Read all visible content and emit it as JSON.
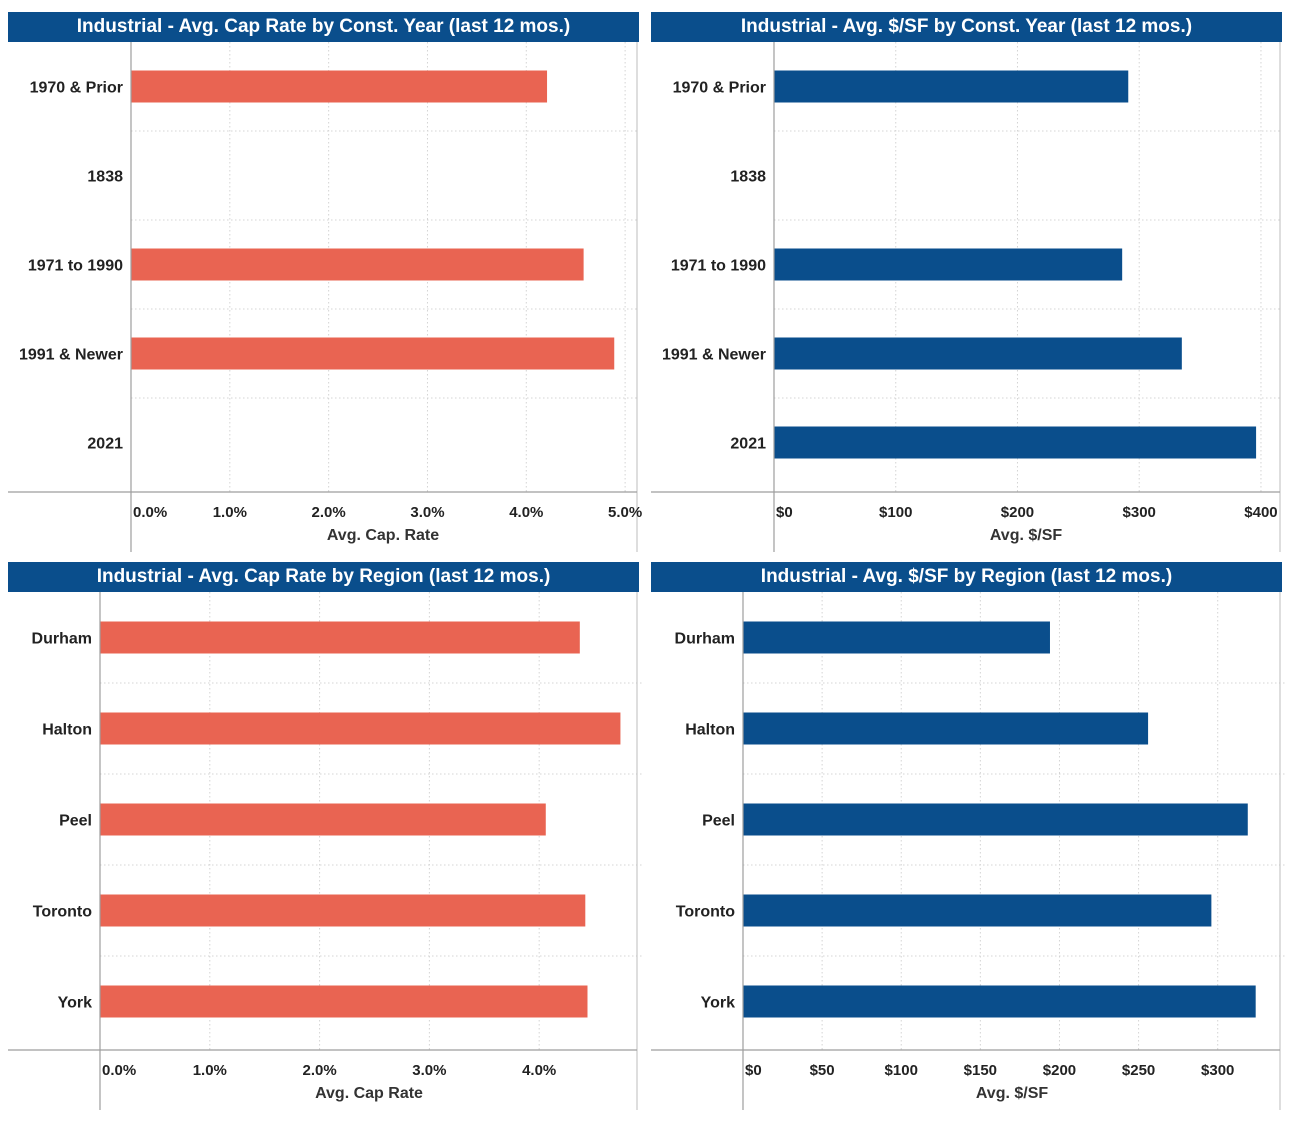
{
  "chart_data": [
    {
      "type": "bar",
      "orientation": "horizontal",
      "title": "Industrial - Avg. Cap Rate by Const. Year (last 12 mos.)",
      "xlabel": "Avg. Cap. Rate",
      "categories": [
        "1970 & Prior",
        "1838",
        "1971 to 1990",
        "1991 & Newer",
        "2021"
      ],
      "values": [
        4.21,
        null,
        4.58,
        4.89,
        null
      ],
      "value_unit": "%",
      "xlim": [
        0,
        5.1
      ],
      "ticks": [
        0,
        1,
        2,
        3,
        4,
        5
      ],
      "tick_labels": [
        "0.0%",
        "1.0%",
        "2.0%",
        "3.0%",
        "4.0%",
        "5.0%"
      ],
      "bar_color": "#e96452",
      "title_bg": "#0a4e8c",
      "grid": true
    },
    {
      "type": "bar",
      "orientation": "horizontal",
      "title": "Industrial - Avg. $/SF by Const. Year (last 12 mos.)",
      "xlabel": "Avg. $/SF",
      "categories": [
        "1970 & Prior",
        "1838",
        "1971 to 1990",
        "1991 & Newer",
        "2021"
      ],
      "values": [
        291,
        null,
        286,
        335,
        396
      ],
      "value_unit": "$",
      "xlim": [
        0,
        414
      ],
      "ticks": [
        0,
        100,
        200,
        300,
        400
      ],
      "tick_labels": [
        "$0",
        "$100",
        "$200",
        "$300",
        "$400"
      ],
      "bar_color": "#0a4e8c",
      "title_bg": "#0a4e8c",
      "grid": true
    },
    {
      "type": "bar",
      "orientation": "horizontal",
      "title": "Industrial - Avg. Cap Rate by Region (last 12 mos.)",
      "xlabel": "Avg. Cap Rate",
      "categories": [
        "Durham",
        "Halton",
        "Peel",
        "Toronto",
        "York"
      ],
      "values": [
        4.37,
        4.74,
        4.06,
        4.42,
        4.44
      ],
      "value_unit": "%",
      "xlim": [
        0,
        4.9
      ],
      "ticks": [
        0,
        1,
        2,
        3,
        4
      ],
      "tick_labels": [
        "0.0%",
        "1.0%",
        "2.0%",
        "3.0%",
        "4.0%"
      ],
      "bar_color": "#e96452",
      "title_bg": "#0a4e8c",
      "grid": true
    },
    {
      "type": "bar",
      "orientation": "horizontal",
      "title": "Industrial - Avg. $/SF by Region (last 12 mos.)",
      "xlabel": "Avg. $/SF",
      "categories": [
        "Durham",
        "Halton",
        "Peel",
        "Toronto",
        "York"
      ],
      "values": [
        194,
        256,
        319,
        296,
        324
      ],
      "value_unit": "$",
      "xlim": [
        0,
        340
      ],
      "ticks": [
        0,
        50,
        100,
        150,
        200,
        250,
        300
      ],
      "tick_labels": [
        "$0",
        "$50",
        "$100",
        "$150",
        "$200",
        "$250",
        "$300"
      ],
      "bar_color": "#0a4e8c",
      "title_bg": "#0a4e8c",
      "grid": true
    }
  ]
}
